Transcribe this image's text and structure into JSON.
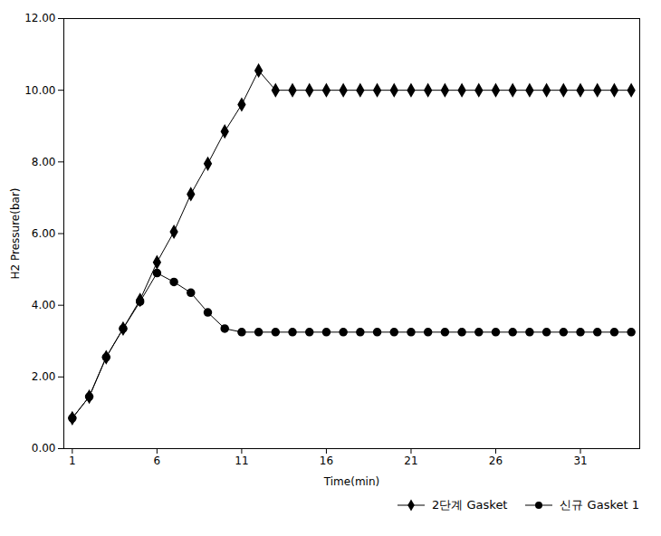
{
  "chart_data": {
    "type": "line",
    "x": [
      1,
      2,
      3,
      4,
      5,
      6,
      7,
      8,
      9,
      10,
      11,
      12,
      13,
      14,
      15,
      16,
      17,
      18,
      19,
      20,
      21,
      22,
      23,
      24,
      25,
      26,
      27,
      28,
      29,
      30,
      31,
      32,
      33,
      34
    ],
    "series": [
      {
        "name": "2단계 Gasket",
        "color": "#000000",
        "marker": "diamond",
        "values": [
          0.85,
          1.45,
          2.55,
          3.35,
          4.15,
          5.2,
          6.05,
          7.1,
          7.95,
          8.85,
          9.6,
          10.55,
          10.0,
          10.0,
          10.0,
          10.0,
          10.0,
          10.0,
          10.0,
          10.0,
          10.0,
          10.0,
          10.0,
          10.0,
          10.0,
          10.0,
          10.0,
          10.0,
          10.0,
          10.0,
          10.0,
          10.0,
          10.0,
          10.0
        ]
      },
      {
        "name": "신규 Gasket 1",
        "color": "#000000",
        "marker": "circle",
        "values": [
          0.85,
          1.45,
          2.55,
          3.35,
          4.1,
          4.9,
          4.65,
          4.35,
          3.8,
          3.35,
          3.25,
          3.25,
          3.25,
          3.25,
          3.25,
          3.25,
          3.25,
          3.25,
          3.25,
          3.25,
          3.25,
          3.25,
          3.25,
          3.25,
          3.25,
          3.25,
          3.25,
          3.25,
          3.25,
          3.25,
          3.25,
          3.25,
          3.25,
          3.25
        ]
      }
    ],
    "xlabel": "Time(min)",
    "ylabel": "H2 Pressure(bar)",
    "xlim": [
      0.5,
      34.5
    ],
    "xticks": [
      1,
      6,
      11,
      16,
      21,
      26,
      31
    ],
    "ylim": [
      0.0,
      12.0
    ],
    "yticks": [
      {
        "value": 0.0,
        "label": "0.00"
      },
      {
        "value": 2.0,
        "label": "2.00"
      },
      {
        "value": 4.0,
        "label": "4.00"
      },
      {
        "value": 6.0,
        "label": "6.00"
      },
      {
        "value": 8.0,
        "label": "8.00"
      },
      {
        "value": 10.0,
        "label": "10.00"
      },
      {
        "value": 12.0,
        "label": "12.00"
      }
    ],
    "legend": "lower right",
    "grid": false
  }
}
